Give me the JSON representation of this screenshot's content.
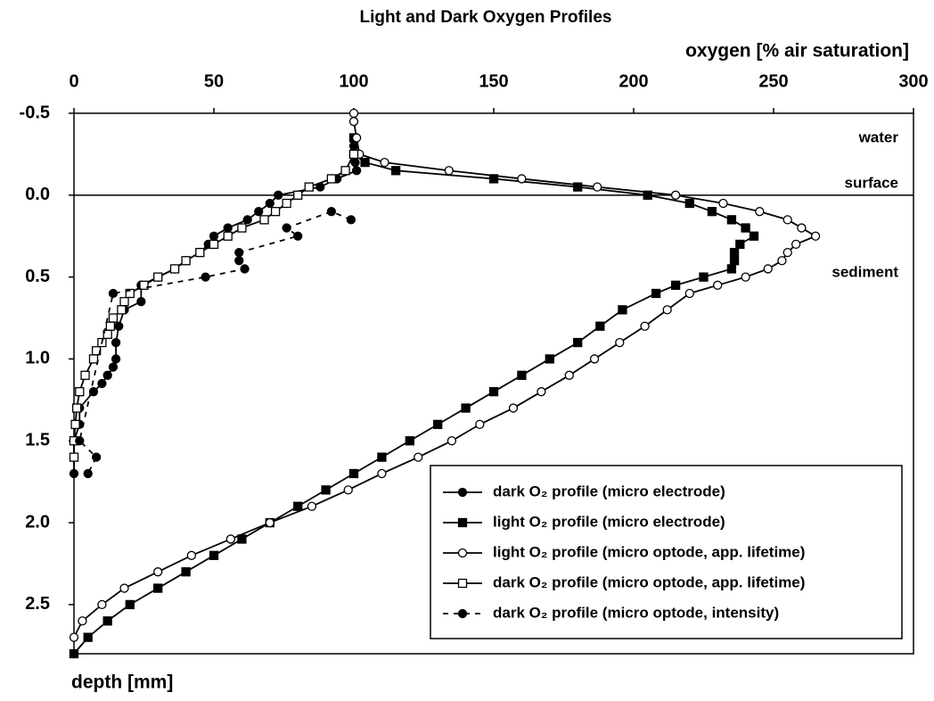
{
  "chart_data": {
    "type": "line",
    "title": "Light and Dark Oxygen Profiles",
    "x_label": "oxygen [% air saturation]",
    "y_label": "depth [mm]",
    "annotations": [
      "water",
      "surface",
      "sediment"
    ],
    "xlim": [
      0,
      300
    ],
    "xticks": [
      0,
      50,
      100,
      150,
      200,
      250,
      300
    ],
    "ylim": [
      -0.5,
      2.8
    ],
    "y_inverted": true,
    "yticks": [
      -0.5,
      {
        "value": 0,
        "label": "0.0"
      },
      0.5,
      {
        "value": 1,
        "label": "1.0"
      },
      1.5,
      {
        "value": 2,
        "label": "2.0"
      },
      2.5
    ],
    "series": [
      {
        "name": "dark O₂ profile (micro electrode)",
        "color": "#000000",
        "marker": "circle",
        "filled": true,
        "dash": false,
        "y": [
          -0.35,
          -0.3,
          -0.25,
          -0.2,
          -0.15,
          -0.1,
          -0.05,
          0,
          0.05,
          0.1,
          0.15,
          0.2,
          0.25,
          0.3,
          0.35,
          0.4,
          0.45,
          0.5,
          0.55,
          0.65,
          0.7,
          0.8,
          0.9,
          1.0,
          1.05,
          1.1,
          1.15,
          1.2,
          1.3,
          1.4,
          1.5,
          1.6,
          1.7
        ],
        "x": [
          100,
          100,
          100,
          100.5,
          101,
          94,
          88,
          73,
          70,
          66,
          62,
          55,
          50,
          48,
          45,
          40,
          36,
          30,
          24,
          24,
          18,
          16,
          15,
          15,
          14,
          12,
          10,
          7,
          2,
          2,
          0,
          0,
          0
        ]
      },
      {
        "name": "light O₂ profile (micro electrode)",
        "color": "#000000",
        "marker": "square",
        "filled": true,
        "dash": false,
        "y": [
          -0.35,
          -0.25,
          -0.2,
          -0.15,
          -0.1,
          -0.05,
          0,
          0.05,
          0.1,
          0.15,
          0.2,
          0.25,
          0.3,
          0.35,
          0.4,
          0.45,
          0.5,
          0.55,
          0.6,
          0.7,
          0.8,
          0.9,
          1.0,
          1.1,
          1.2,
          1.3,
          1.4,
          1.5,
          1.6,
          1.7,
          1.8,
          1.9,
          2.0,
          2.1,
          2.2,
          2.3,
          2.4,
          2.5,
          2.6,
          2.7,
          2.8
        ],
        "x": [
          100,
          100,
          104,
          115,
          150,
          180,
          205,
          220,
          228,
          235,
          240,
          243,
          238,
          236,
          236,
          235,
          225,
          215,
          208,
          196,
          188,
          180,
          170,
          160,
          150,
          140,
          130,
          120,
          110,
          100,
          90,
          80,
          70,
          60,
          50,
          40,
          30,
          20,
          12,
          5,
          0
        ]
      },
      {
        "name": "light O₂ profile (micro optode, app. lifetime)",
        "color": "#000000",
        "marker": "circle",
        "filled": false,
        "dash": false,
        "y": [
          -0.5,
          -0.45,
          -0.35,
          -0.25,
          -0.2,
          -0.15,
          -0.1,
          -0.05,
          0,
          0.05,
          0.1,
          0.15,
          0.2,
          0.25,
          0.3,
          0.35,
          0.4,
          0.45,
          0.5,
          0.55,
          0.6,
          0.7,
          0.8,
          0.9,
          1.0,
          1.1,
          1.2,
          1.3,
          1.4,
          1.5,
          1.6,
          1.7,
          1.8,
          1.9,
          2.0,
          2.1,
          2.2,
          2.3,
          2.4,
          2.5,
          2.6,
          2.7
        ],
        "x": [
          100,
          100,
          101,
          102,
          111,
          134,
          160,
          187,
          215,
          232,
          245,
          255,
          260,
          265,
          258,
          255,
          253,
          248,
          240,
          230,
          220,
          212,
          204,
          195,
          186,
          177,
          167,
          157,
          145,
          135,
          123,
          110,
          98,
          85,
          70,
          56,
          42,
          30,
          18,
          10,
          3,
          0
        ]
      },
      {
        "name": "dark O₂ profile (micro optode, app. lifetime)",
        "color": "#000000",
        "marker": "square",
        "filled": false,
        "dash": false,
        "y": [
          -0.25,
          -0.15,
          -0.1,
          -0.05,
          0,
          0.05,
          0.1,
          0.15,
          0.2,
          0.25,
          0.3,
          0.35,
          0.4,
          0.45,
          0.5,
          0.55,
          0.6,
          0.65,
          0.7,
          0.75,
          0.8,
          0.85,
          0.9,
          0.95,
          1.0,
          1.1,
          1.2,
          1.3,
          1.4,
          1.5,
          1.6
        ],
        "x": [
          100,
          97,
          92,
          84,
          80,
          76,
          72,
          68,
          60,
          55,
          50,
          45,
          40,
          36,
          30,
          25,
          20,
          18,
          17,
          14,
          13,
          12,
          10,
          8,
          7,
          4,
          2,
          1,
          0.5,
          0,
          0
        ]
      },
      {
        "name": "dark O₂ profile (micro optode, intensity)",
        "color": "#000000",
        "marker": "circle",
        "filled": true,
        "dash": true,
        "y": [
          0.15,
          0.1,
          0.2,
          0.25,
          0.35,
          0.4,
          0.45,
          0.5,
          0.6,
          1.5,
          1.6,
          1.7
        ],
        "x": [
          99,
          92,
          76,
          80,
          59,
          59,
          61,
          47,
          14,
          2,
          8,
          5
        ]
      }
    ]
  }
}
